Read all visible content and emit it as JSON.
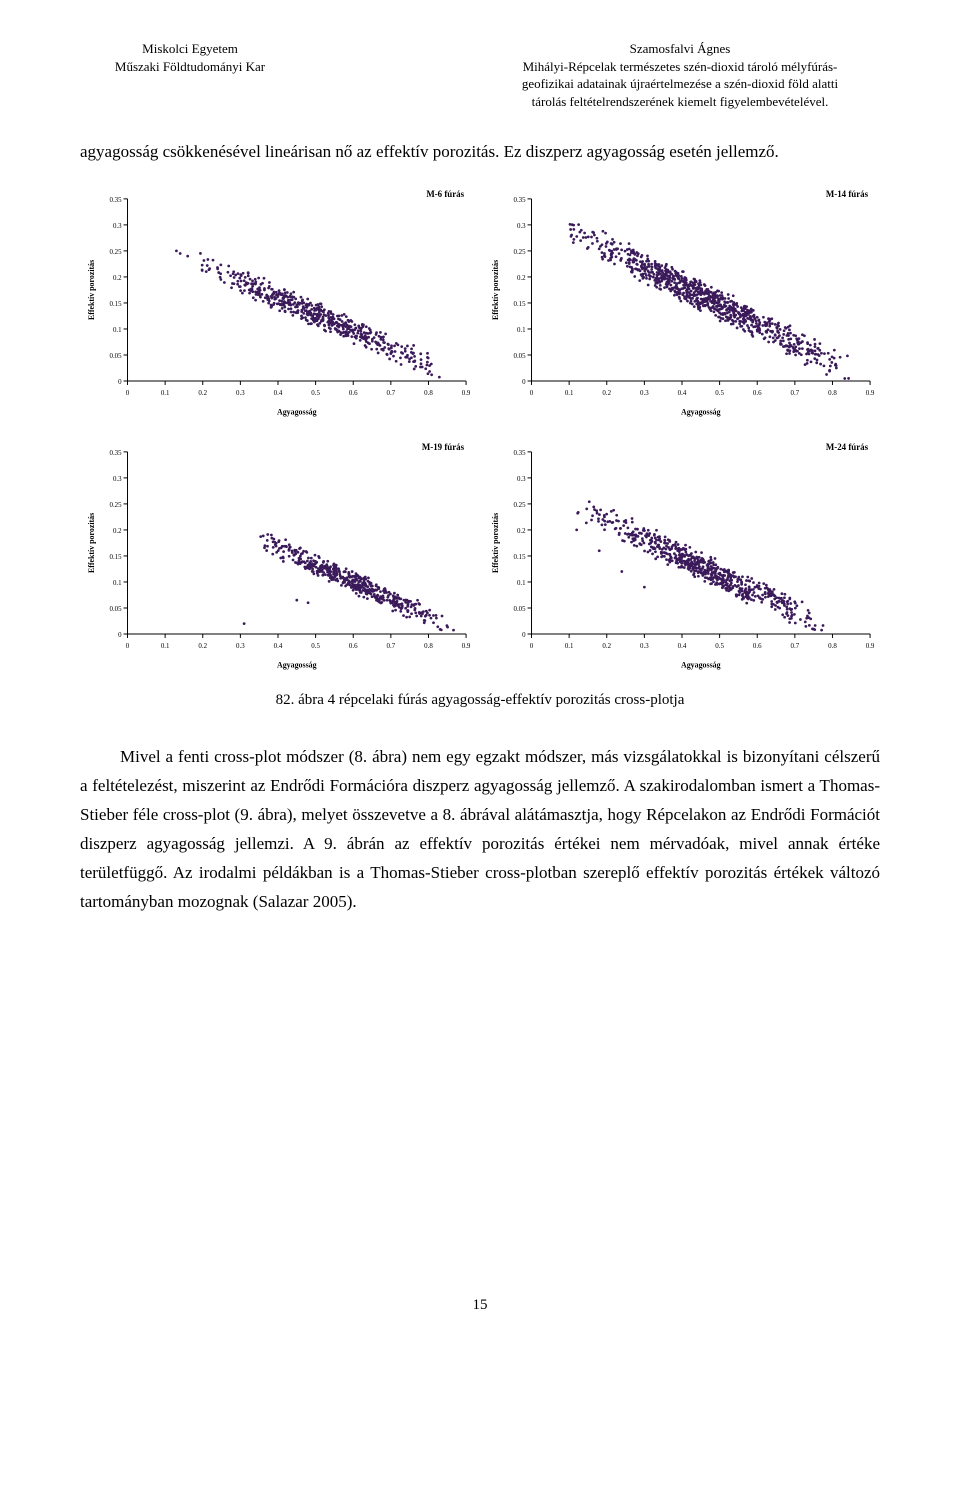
{
  "header": {
    "left_line1": "Miskolci Egyetem",
    "left_line2": "Műszaki Földtudományi Kar",
    "right_line1": "Szamosfalvi Ágnes",
    "right_line2": "Mihályi-Répcelak természetes szén-dioxid tároló mélyfúrás-",
    "right_line3": "geofizikai adatainak újraértelmezése a szén-dioxid föld alatti",
    "right_line4": "tárolás feltételrendszerének kiemelt figyelembevételével."
  },
  "para1": "agyagosság csökkenésével lineárisan nő az effektív porozitás. Ez diszperz agyagosság esetén jellemző.",
  "caption": "82. ábra 4 répcelaki fúrás agyagosság-effektív porozitás cross-plotja",
  "para2": "Mivel a fenti cross-plot módszer (8. ábra) nem egy egzakt módszer, más vizsgálatokkal is bizonyítani célszerű a feltételezést, miszerint az Endrődi Formációra diszperz agyagosság jellemző. A szakirodalomban ismert a Thomas-Stieber féle cross-plot (9. ábra), melyet összevetve a 8. ábrával alátámasztja, hogy Répcelakon az Endrődi Formációt diszperz agyagosság jellemzi. A 9. ábrán az effektív porozitás értékei nem mérvadóak, mivel annak értéke területfüggő. Az irodalmi példákban is a Thomas-Stieber cross-plotban szereplő effektív porozitás értékek változó tartományban mozognak (Salazar 2005).",
  "page_number": "15",
  "chart_common": {
    "xlabel": "Agyagosság",
    "ylabel": "Effektív porozitás",
    "xlim": [
      0,
      0.9
    ],
    "ylim": [
      0,
      0.35
    ],
    "xtick_step": 0.1,
    "ytick_step": 0.05,
    "xticks": [
      "0",
      "0.1",
      "0.2",
      "0.3",
      "0.4",
      "0.5",
      "0.6",
      "0.7",
      "0.8",
      "0.9"
    ],
    "yticks": [
      "0",
      "0.05",
      "0.1",
      "0.15",
      "0.2",
      "0.25",
      "0.3",
      "0.35"
    ],
    "point_color": "#3b1a5a",
    "point_size": 1.4,
    "axis_color": "#000000",
    "background": "#ffffff",
    "tick_fontsize": 7,
    "label_fontsize": 8,
    "title_fontsize": 9,
    "title_weight": "bold"
  },
  "charts": [
    {
      "title": "M-6 fúrás",
      "cluster_line": {
        "x0": 0.12,
        "y0": 0.25,
        "x1": 0.9,
        "y1": 0.0
      },
      "n_points": 550,
      "spread_along": 0.018,
      "spread_perp": 0.018,
      "outliers": [
        [
          0.13,
          0.25
        ],
        [
          0.14,
          0.245
        ],
        [
          0.16,
          0.24
        ]
      ]
    },
    {
      "title": "M-14 fúrás",
      "cluster_line": {
        "x0": 0.05,
        "y0": 0.31,
        "x1": 0.9,
        "y1": 0.0
      },
      "n_points": 900,
      "spread_along": 0.02,
      "spread_perp": 0.022,
      "outliers": []
    },
    {
      "title": "M-19 fúrás",
      "cluster_line": {
        "x0": 0.3,
        "y0": 0.2,
        "x1": 0.9,
        "y1": 0.0
      },
      "n_points": 480,
      "spread_along": 0.02,
      "spread_perp": 0.016,
      "outliers": [
        [
          0.45,
          0.065
        ],
        [
          0.48,
          0.06
        ],
        [
          0.31,
          0.02
        ]
      ]
    },
    {
      "title": "M-24 fúrás",
      "cluster_line": {
        "x0": 0.08,
        "y0": 0.26,
        "x1": 0.82,
        "y1": 0.0
      },
      "n_points": 650,
      "spread_along": 0.02,
      "spread_perp": 0.02,
      "outliers": [
        [
          0.12,
          0.2
        ],
        [
          0.18,
          0.16
        ],
        [
          0.24,
          0.12
        ],
        [
          0.3,
          0.09
        ]
      ]
    }
  ]
}
